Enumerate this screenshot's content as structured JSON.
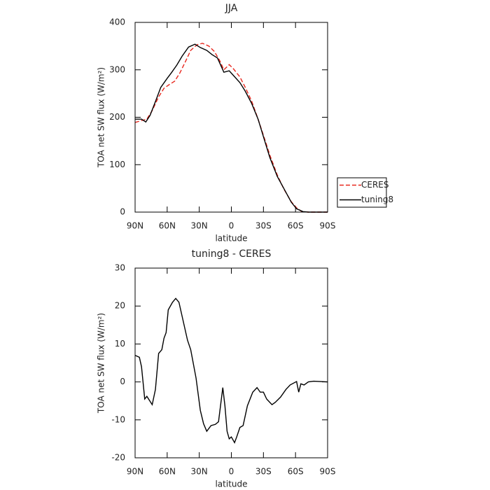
{
  "chart_data": [
    {
      "type": "line",
      "title": "JJA",
      "xlabel": "latitude",
      "ylabel": "TOA net SW flux (W/m²)",
      "xlim": [
        90,
        -90
      ],
      "ylim": [
        0,
        400
      ],
      "xticks": [
        {
          "value": 90,
          "label": "90N"
        },
        {
          "value": 60,
          "label": "60N"
        },
        {
          "value": 30,
          "label": "30N"
        },
        0,
        {
          "value": -30,
          "label": "30S"
        },
        {
          "value": -60,
          "label": "60S"
        },
        {
          "value": -90,
          "label": "90S"
        }
      ],
      "yticks": [
        0,
        100,
        200,
        300,
        400
      ],
      "legend": "right",
      "series": [
        {
          "name": "CERES",
          "color": "#e8281e",
          "linestyle": "dashed",
          "x": [
            90,
            84,
            79,
            74,
            68,
            63,
            58,
            53,
            48,
            43,
            38,
            32,
            27,
            21,
            16,
            11,
            7,
            2,
            -2,
            -8,
            -13,
            -19,
            -25,
            -30,
            -36,
            -43,
            -49,
            -56,
            -61,
            -66,
            -72,
            -90
          ],
          "values": [
            189,
            193,
            196,
            214,
            243,
            261,
            269,
            276,
            294,
            317,
            341,
            353,
            356,
            350,
            339,
            320,
            300,
            311,
            302,
            285,
            263,
            234,
            196,
            162,
            120,
            78,
            49,
            22,
            9,
            1,
            0,
            0
          ]
        },
        {
          "name": "tuning8",
          "color": "#000000",
          "linestyle": "solid",
          "x": [
            90,
            84,
            80,
            76,
            71,
            66,
            60,
            56,
            51,
            46,
            40,
            34,
            29,
            23,
            18,
            13,
            10,
            7,
            2,
            -2,
            -8,
            -13,
            -19,
            -25,
            -30,
            -36,
            -43,
            -50,
            -56,
            -61,
            -67,
            -72,
            -90
          ],
          "values": [
            196,
            196,
            190,
            204,
            233,
            263,
            282,
            294,
            310,
            329,
            348,
            354,
            347,
            341,
            332,
            325,
            310,
            295,
            298,
            288,
            273,
            255,
            229,
            196,
            159,
            115,
            75,
            46,
            21,
            7,
            1,
            0,
            0
          ]
        }
      ]
    },
    {
      "type": "line",
      "title": "tuning8 - CERES",
      "xlabel": "latitude",
      "ylabel": "TOA net SW flux (W/m²)",
      "xlim": [
        90,
        -90
      ],
      "ylim": [
        -20,
        30
      ],
      "xticks": [
        {
          "value": 90,
          "label": "90N"
        },
        {
          "value": 60,
          "label": "60N"
        },
        {
          "value": 30,
          "label": "30N"
        },
        0,
        {
          "value": -30,
          "label": "30S"
        },
        {
          "value": -60,
          "label": "60S"
        },
        {
          "value": -90,
          "label": "90S"
        }
      ],
      "yticks": [
        -20,
        -10,
        0,
        10,
        20,
        30
      ],
      "series": [
        {
          "color": "#000000",
          "linestyle": "solid",
          "x": [
            90,
            86,
            84,
            81,
            79,
            74,
            71,
            68,
            65,
            63,
            61,
            59,
            55,
            52,
            49,
            45,
            41,
            38,
            33,
            29,
            26,
            23,
            19,
            15,
            12,
            8,
            6,
            4,
            2,
            0,
            -3,
            -5,
            -8,
            -11,
            -15,
            -20,
            -24,
            -27,
            -30,
            -33,
            -38,
            -41,
            -46,
            -51,
            -55,
            -61,
            -63,
            -65,
            -68,
            -72,
            -77,
            -90
          ],
          "values": [
            7,
            6.5,
            4,
            -4.5,
            -3.8,
            -6,
            -2,
            7.5,
            8.5,
            11.5,
            13,
            19,
            21,
            22,
            21,
            16,
            11,
            8.5,
            1,
            -7.5,
            -11,
            -13,
            -11.5,
            -11.2,
            -10.5,
            -1.5,
            -6.3,
            -13,
            -15,
            -14.5,
            -16,
            -14.5,
            -12,
            -11.5,
            -6.3,
            -2.7,
            -1.5,
            -2.7,
            -2.7,
            -4.5,
            -6,
            -5.4,
            -4,
            -2,
            -0.8,
            0.1,
            -2.7,
            -0.5,
            -0.8,
            0,
            0.2,
            0
          ]
        }
      ]
    }
  ]
}
